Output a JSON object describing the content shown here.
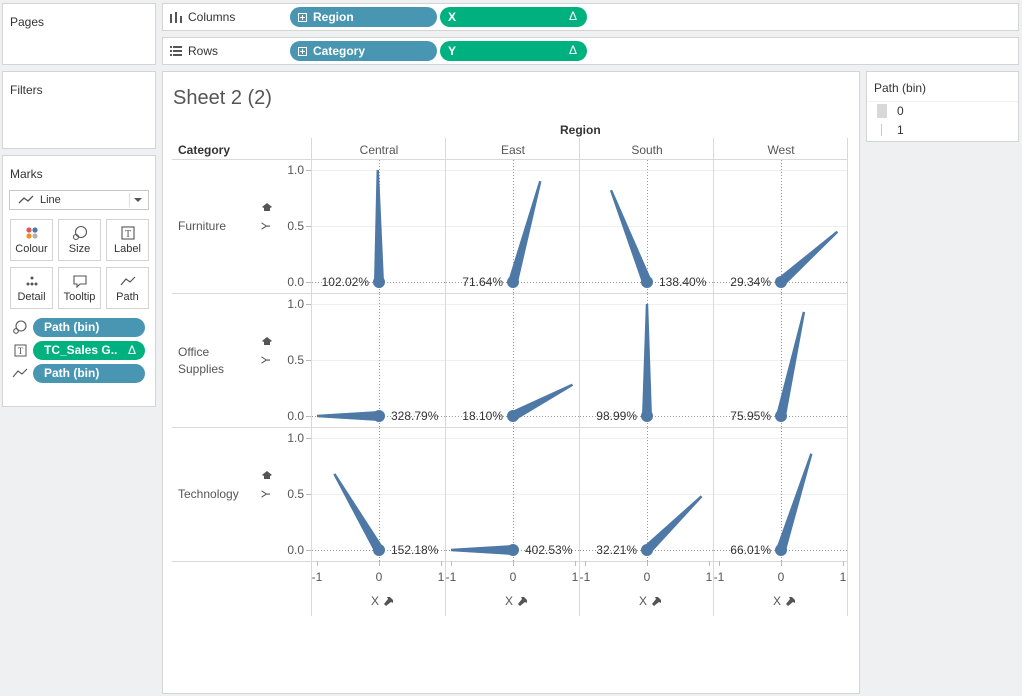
{
  "panes": {
    "pages_title": "Pages",
    "filters_title": "Filters",
    "marks_title": "Marks",
    "mark_type": "Line",
    "mark_buttons": [
      "Colour",
      "Size",
      "Label",
      "Detail",
      "Tooltip",
      "Path"
    ],
    "mark_fields": [
      {
        "icon": "size-icon",
        "label": "Path (bin)",
        "color": "#4996b2"
      },
      {
        "icon": "label-icon",
        "label": "TC_Sales G..",
        "delta": "Δ",
        "color": "#00b180"
      },
      {
        "icon": "path-line-icon",
        "label": "Path (bin)",
        "color": "#4996b2"
      }
    ]
  },
  "shelves": {
    "columns_label": "Columns",
    "rows_label": "Rows",
    "columns_pills": [
      {
        "label": "Region",
        "delta": ""
      },
      {
        "label": "X",
        "delta": "Δ"
      }
    ],
    "rows_pills": [
      {
        "label": "Category",
        "delta": ""
      },
      {
        "label": "Y",
        "delta": "Δ"
      }
    ]
  },
  "sheet": {
    "title": "Sheet 2 (2)",
    "region_header": "Region",
    "category_header": "Category",
    "x_axis_title": "X",
    "y_axis_title": "Y"
  },
  "legend": {
    "title": "Path (bin)",
    "items": [
      "0",
      "1"
    ]
  },
  "colors": {
    "mark": "#4e79a7",
    "blue_pill": "#4996b2",
    "green_pill": "#00b180"
  },
  "chart_data": {
    "type": "line",
    "regions": [
      "Central",
      "East",
      "South",
      "West"
    ],
    "categories": [
      "Furniture",
      "Office Supplies",
      "Technology"
    ],
    "x_ticks": [
      "-1",
      "0",
      "1"
    ],
    "y_ticks": [
      "1.0",
      "0.5",
      "0.0"
    ],
    "xlim": [
      -1,
      1
    ],
    "ylim": [
      0,
      1
    ],
    "cells": [
      {
        "category": "Furniture",
        "region": "Central",
        "x": [
          0,
          -0.02
        ],
        "y": [
          0,
          1.0
        ],
        "label": "102.02%",
        "label_side": "left"
      },
      {
        "category": "Furniture",
        "region": "East",
        "x": [
          0,
          0.44
        ],
        "y": [
          0,
          0.9
        ],
        "label": "71.64%",
        "label_side": "left"
      },
      {
        "category": "Furniture",
        "region": "South",
        "x": [
          0,
          -0.58
        ],
        "y": [
          0,
          0.82
        ],
        "label": "138.40%",
        "label_side": "right"
      },
      {
        "category": "Furniture",
        "region": "West",
        "x": [
          0,
          0.91
        ],
        "y": [
          0,
          0.45
        ],
        "label": "29.34%",
        "label_side": "left"
      },
      {
        "category": "Office Supplies",
        "region": "Central",
        "x": [
          0,
          -1.0
        ],
        "y": [
          0,
          0.0
        ],
        "label": "328.79%",
        "label_side": "right"
      },
      {
        "category": "Office Supplies",
        "region": "East",
        "x": [
          0,
          0.96
        ],
        "y": [
          0,
          0.28
        ],
        "label": "18.10%",
        "label_side": "left"
      },
      {
        "category": "Office Supplies",
        "region": "South",
        "x": [
          0,
          0.0
        ],
        "y": [
          0,
          1.0
        ],
        "label": "98.99%",
        "label_side": "left"
      },
      {
        "category": "Office Supplies",
        "region": "West",
        "x": [
          0,
          0.37
        ],
        "y": [
          0,
          0.93
        ],
        "label": "75.95%",
        "label_side": "left"
      },
      {
        "category": "Technology",
        "region": "Central",
        "x": [
          0,
          -0.72
        ],
        "y": [
          0,
          0.68
        ],
        "label": "152.18%",
        "label_side": "right"
      },
      {
        "category": "Technology",
        "region": "East",
        "x": [
          0,
          -1.0
        ],
        "y": [
          0,
          0.0
        ],
        "label": "402.53%",
        "label_side": "right"
      },
      {
        "category": "Technology",
        "region": "South",
        "x": [
          0,
          0.88
        ],
        "y": [
          0,
          0.48
        ],
        "label": "32.21%",
        "label_side": "left"
      },
      {
        "category": "Technology",
        "region": "West",
        "x": [
          0,
          0.49
        ],
        "y": [
          0,
          0.86
        ],
        "label": "66.01%",
        "label_side": "left"
      }
    ]
  }
}
